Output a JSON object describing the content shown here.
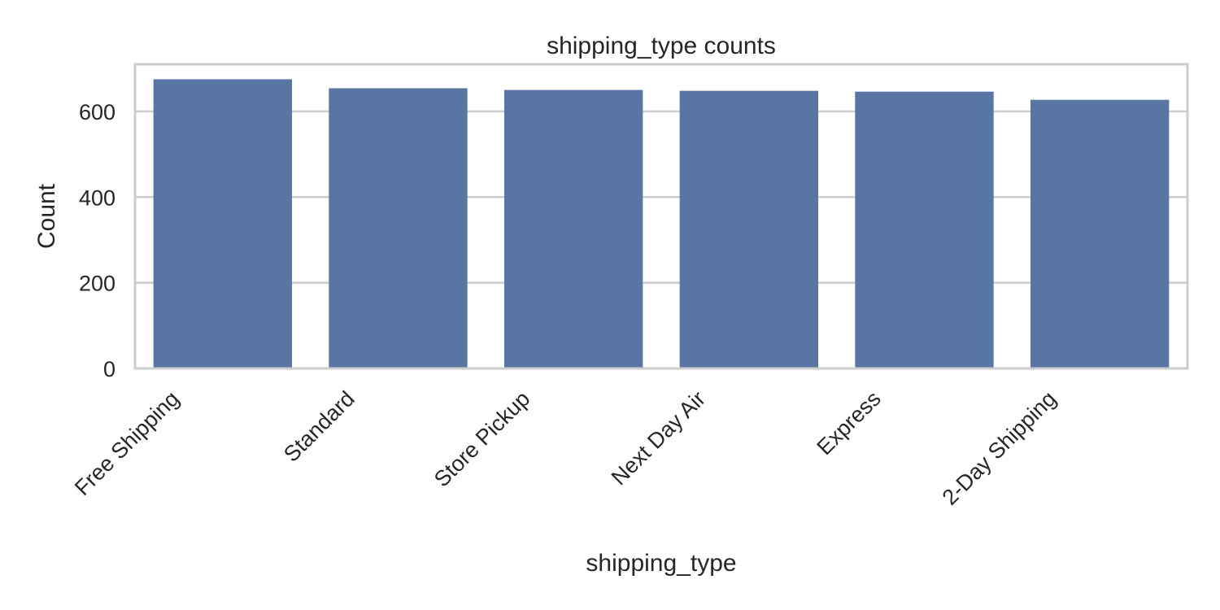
{
  "chart_data": {
    "type": "bar",
    "title": "shipping_type counts",
    "xlabel": "shipping_type",
    "ylabel": "Count",
    "categories": [
      "Free Shipping",
      "Standard",
      "Store Pickup",
      "Next Day Air",
      "Express",
      "2-Day Shipping"
    ],
    "values": [
      675,
      654,
      650,
      648,
      646,
      627
    ],
    "ylim": [
      0,
      710
    ],
    "yticks": [
      "0",
      "200",
      "400",
      "600"
    ],
    "ytick_values": [
      0,
      200,
      400,
      600
    ],
    "grid": true,
    "bar_color": "#5975a4",
    "grid_color": "#cccccc",
    "frame_color": "#cccccc"
  }
}
